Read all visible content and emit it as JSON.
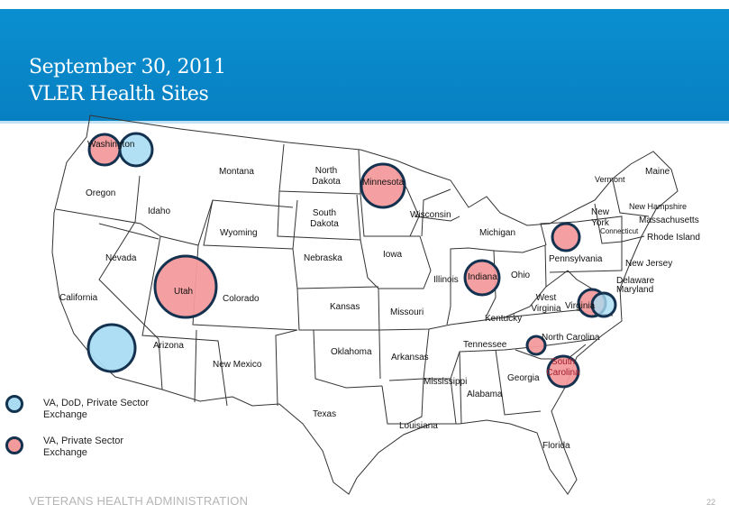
{
  "header": {
    "title_line1": "September 30, 2011",
    "title_line2": "VLER Health Sites"
  },
  "colors": {
    "header_blue": "#0884c6",
    "va_dod_private": "#a9dcf3",
    "va_private": "#f39a9c",
    "circle_stroke": "#14324f"
  },
  "states": [
    {
      "name": "Washington"
    },
    {
      "name": "Oregon"
    },
    {
      "name": "California"
    },
    {
      "name": "Idaho"
    },
    {
      "name": "Nevada"
    },
    {
      "name": "Montana"
    },
    {
      "name": "Wyoming"
    },
    {
      "name": "Utah"
    },
    {
      "name": "Arizona"
    },
    {
      "name": "Colorado"
    },
    {
      "name": "New Mexico"
    },
    {
      "name": "North Dakota"
    },
    {
      "name": "South Dakota"
    },
    {
      "name": "Nebraska"
    },
    {
      "name": "Kansas"
    },
    {
      "name": "Oklahoma"
    },
    {
      "name": "Texas"
    },
    {
      "name": "Minnesota"
    },
    {
      "name": "Iowa"
    },
    {
      "name": "Missouri"
    },
    {
      "name": "Arkansas"
    },
    {
      "name": "Louisiana"
    },
    {
      "name": "Wisconsin"
    },
    {
      "name": "Illinois"
    },
    {
      "name": "Mississippi"
    },
    {
      "name": "Michigan"
    },
    {
      "name": "Indiana"
    },
    {
      "name": "Kentucky"
    },
    {
      "name": "Tennessee"
    },
    {
      "name": "Alabama"
    },
    {
      "name": "Ohio"
    },
    {
      "name": "Georgia"
    },
    {
      "name": "Florida"
    },
    {
      "name": "West Virginia"
    },
    {
      "name": "Virginia"
    },
    {
      "name": "North Carolina"
    },
    {
      "name": "South Carolina"
    },
    {
      "name": "Pennsylvania"
    },
    {
      "name": "New York"
    },
    {
      "name": "Vermont"
    },
    {
      "name": "Maine"
    },
    {
      "name": "New Hampshire"
    },
    {
      "name": "Massachusetts"
    },
    {
      "name": "Connecticut"
    },
    {
      "name": "Rhode Island"
    },
    {
      "name": "New Jersey"
    },
    {
      "name": "Delaware"
    },
    {
      "name": "Maryland"
    }
  ],
  "sites": [
    {
      "state": "Washington",
      "type": "va_private"
    },
    {
      "state": "Washington",
      "type": "va_dod_private"
    },
    {
      "state": "Minnesota",
      "type": "va_private"
    },
    {
      "state": "Utah",
      "type": "va_private"
    },
    {
      "state": "California",
      "type": "va_dod_private"
    },
    {
      "state": "Indiana",
      "type": "va_private"
    },
    {
      "state": "New York",
      "type": "va_private"
    },
    {
      "state": "Virginia",
      "type": "va_private"
    },
    {
      "state": "Virginia",
      "type": "va_dod_private"
    },
    {
      "state": "North Carolina",
      "type": "va_private"
    },
    {
      "state": "South Carolina",
      "type": "va_private"
    }
  ],
  "legend": [
    {
      "label": "VA, DoD, Private Sector Exchange",
      "type": "va_dod_private"
    },
    {
      "label": "VA, Private Sector Exchange",
      "type": "va_private"
    }
  ],
  "footer": {
    "org": "VETERANS HEALTH ADMINISTRATION",
    "page": "22"
  }
}
